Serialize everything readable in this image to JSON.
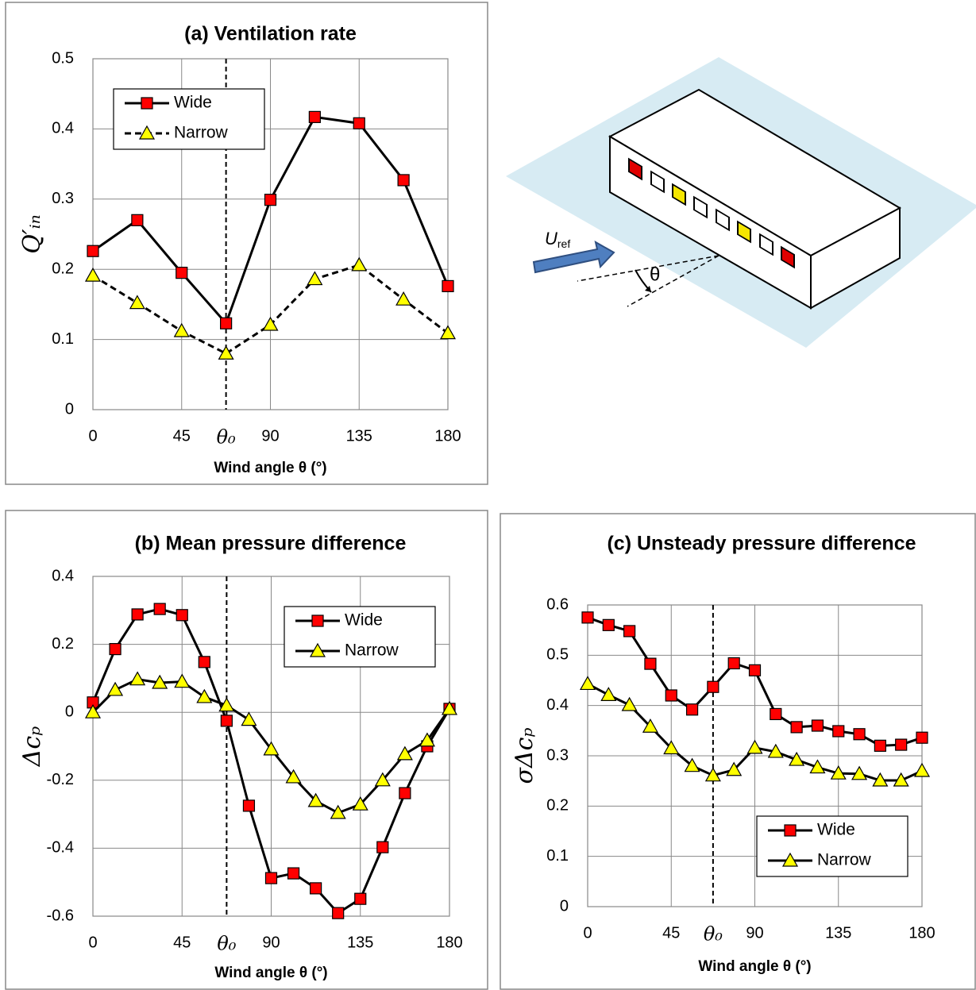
{
  "chart_data": [
    {
      "type": "line",
      "title": "(a) Ventilation rate",
      "x_label": "Wind angle θ (°)",
      "y_label": "Q′ᵢₙ",
      "x": [
        0,
        22.5,
        45,
        67.5,
        90,
        112.5,
        135,
        157.5,
        180
      ],
      "series": [
        {
          "name": "Wide",
          "color": "#ff0000",
          "marker": "square",
          "dashed": false,
          "values": [
            0.226,
            0.27,
            0.195,
            0.123,
            0.299,
            0.417,
            0.408,
            0.327,
            0.176
          ]
        },
        {
          "name": "Narrow",
          "color": "#ffff00",
          "marker": "triangle",
          "dashed": true,
          "values": [
            0.191,
            0.152,
            0.112,
            0.08,
            0.121,
            0.186,
            0.206,
            0.157,
            0.109
          ]
        }
      ],
      "xlim": [
        0,
        180
      ],
      "ylim": [
        0,
        0.5
      ],
      "xticks": [
        0,
        45,
        90,
        135,
        180
      ],
      "yticks": [
        0,
        0.1,
        0.2,
        0.3,
        0.4,
        0.5
      ],
      "reference_line": {
        "value": 67.5,
        "label": "θ₀"
      },
      "grid": true,
      "legend": "upper left"
    },
    {
      "type": "line",
      "title": "(b) Mean pressure difference",
      "x_label": "Wind angle θ (°)",
      "y_label": "Δcₚ",
      "x": [
        0,
        11.25,
        22.5,
        33.75,
        45,
        56.25,
        67.5,
        78.75,
        90,
        101.25,
        112.5,
        123.75,
        135,
        146.25,
        157.5,
        168.75,
        180
      ],
      "series": [
        {
          "name": "Wide",
          "color": "#ff0000",
          "marker": "square",
          "dashed": false,
          "values": [
            0.029,
            0.186,
            0.288,
            0.304,
            0.286,
            0.148,
            -0.025,
            -0.275,
            -0.488,
            -0.474,
            -0.518,
            -0.591,
            -0.549,
            -0.397,
            -0.238,
            -0.1,
            0.01
          ]
        },
        {
          "name": "Narrow",
          "color": "#ffff00",
          "marker": "triangle",
          "dashed": false,
          "values": [
            0.0,
            0.066,
            0.097,
            0.087,
            0.09,
            0.045,
            0.02,
            -0.022,
            -0.109,
            -0.191,
            -0.261,
            -0.296,
            -0.271,
            -0.2,
            -0.123,
            -0.083,
            0.01
          ]
        }
      ],
      "xlim": [
        0,
        180
      ],
      "ylim": [
        -0.6,
        0.4
      ],
      "xticks": [
        0,
        45,
        90,
        135,
        180
      ],
      "yticks": [
        -0.6,
        -0.4,
        -0.2,
        0,
        0.2,
        0.4
      ],
      "reference_line": {
        "value": 67.5,
        "label": "θ₀"
      },
      "grid": true,
      "legend": "upper right"
    },
    {
      "type": "line",
      "title": "(c) Unsteady pressure difference",
      "x_label": "Wind angle θ (°)",
      "y_label": "σΔcₚ",
      "x": [
        0,
        11.25,
        22.5,
        33.75,
        45,
        56.25,
        67.5,
        78.75,
        90,
        101.25,
        112.5,
        123.75,
        135,
        146.25,
        157.5,
        168.75,
        180
      ],
      "series": [
        {
          "name": "Wide",
          "color": "#ff0000",
          "marker": "square",
          "dashed": false,
          "values": [
            0.575,
            0.56,
            0.548,
            0.483,
            0.42,
            0.392,
            0.437,
            0.484,
            0.47,
            0.383,
            0.357,
            0.36,
            0.349,
            0.343,
            0.32,
            0.322,
            0.336
          ]
        },
        {
          "name": "Narrow",
          "color": "#ffff00",
          "marker": "triangle",
          "dashed": false,
          "values": [
            0.443,
            0.421,
            0.401,
            0.358,
            0.315,
            0.28,
            0.261,
            0.272,
            0.316,
            0.308,
            0.292,
            0.277,
            0.265,
            0.264,
            0.251,
            0.251,
            0.27
          ]
        }
      ],
      "xlim": [
        0,
        180
      ],
      "ylim": [
        0,
        0.6
      ],
      "xticks": [
        0,
        45,
        90,
        135,
        180
      ],
      "yticks": [
        0,
        0.1,
        0.2,
        0.3,
        0.4,
        0.5,
        0.6
      ],
      "reference_line": {
        "value": 67.5,
        "label": "θ₀"
      },
      "grid": true,
      "legend": "lower right"
    }
  ],
  "diagram": {
    "wind_label": "U",
    "wind_label_sub": "ref",
    "angle_label": "θ"
  }
}
